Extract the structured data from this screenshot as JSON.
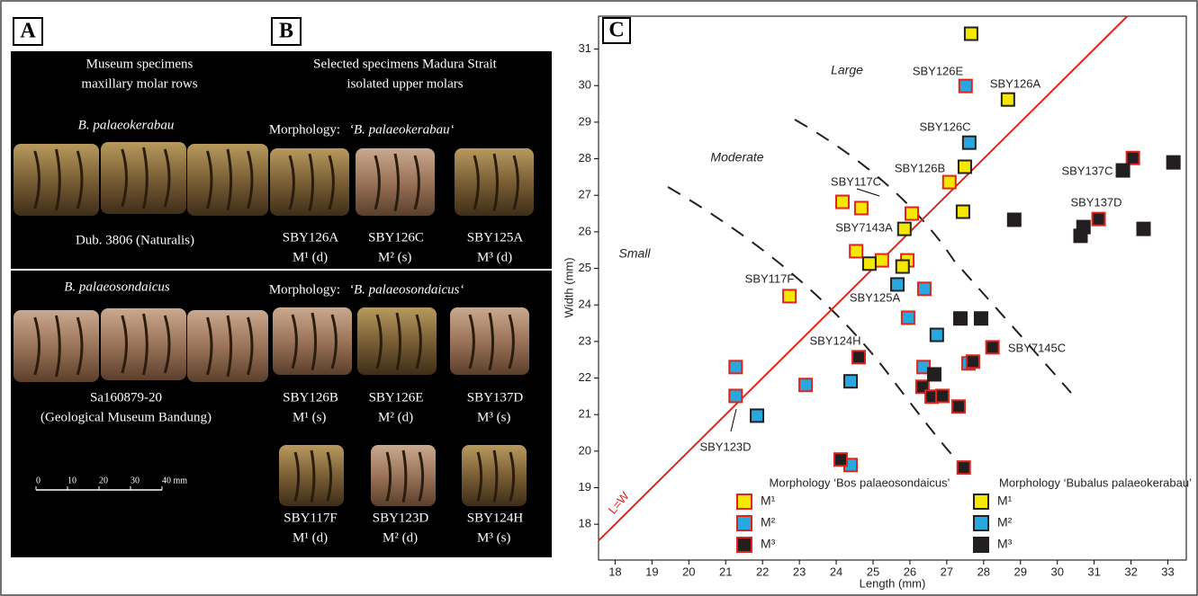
{
  "panels": {
    "a": {
      "label": "A",
      "heading": [
        "Museum specimens",
        "maxillary molar rows"
      ],
      "top_taxon": "B. palaeokerabau",
      "top_caption": "Dub. 3806 (Naturalis)",
      "bottom_taxon": "B. palaeosondaicus",
      "bottom_caption": [
        "Sa160879-20",
        "(Geological Museum Bandung)"
      ],
      "scale_ticks": [
        "0",
        "10",
        "20",
        "30",
        "40 mm"
      ]
    },
    "b": {
      "label": "B",
      "heading": [
        "Selected specimens Madura Strait",
        "isolated upper molars"
      ],
      "groups": [
        {
          "morphology_label": "Morphology:",
          "morphology": "‘B. palaeokerabau‘",
          "specimens": [
            {
              "id": "SBY126A",
              "tooth": "M¹ (d)"
            },
            {
              "id": "SBY126C",
              "tooth": "M² (s)"
            },
            {
              "id": "SBY125A",
              "tooth": "M³ (d)"
            }
          ]
        },
        {
          "morphology_label": "Morphology:",
          "morphology": "‘B. palaeosondaicus‘",
          "specimens": [
            {
              "id": "SBY126B",
              "tooth": "M¹ (s)"
            },
            {
              "id": "SBY126E",
              "tooth": "M² (d)"
            },
            {
              "id": "SBY137D",
              "tooth": "M³ (s)"
            },
            {
              "id": "SBY117F",
              "tooth": "M¹ (d)"
            },
            {
              "id": "SBY123D",
              "tooth": "M² (d)"
            },
            {
              "id": "SBY124H",
              "tooth": "M³ (s)"
            }
          ]
        }
      ]
    }
  },
  "chart_data": {
    "type": "scatter",
    "label": "C",
    "xlabel": "Length (mm)",
    "ylabel": "Width (mm)",
    "xlim": [
      17.55,
      33.5
    ],
    "ylim": [
      17.02,
      31.9
    ],
    "xticks": [
      18,
      19,
      20,
      21,
      22,
      23,
      24,
      25,
      26,
      27,
      28,
      29,
      30,
      31,
      32,
      33
    ],
    "yticks": [
      18,
      19,
      20,
      21,
      22,
      23,
      24,
      25,
      26,
      27,
      28,
      29,
      30,
      31
    ],
    "reference_line": "L=W",
    "legend_titles": [
      "Morphology ‘Bos palaeosondaicus’",
      "Morphology ‘Bubalus palaeokerabau’"
    ],
    "series": [
      {
        "name": "M¹",
        "color": "#f5e800",
        "edgecolor": "#e2231a",
        "x": [
          22.73,
          24.17,
          24.68,
          24.54,
          25.24,
          26.05,
          27.07,
          25.93
        ],
        "values": [
          24.24,
          26.82,
          26.65,
          25.47,
          25.22,
          26.5,
          27.36,
          25.22
        ]
      },
      {
        "name": "M²",
        "color": "#29a8e0",
        "edgecolor": "#e2231a",
        "x": [
          27.51,
          21.27,
          21.27,
          23.17,
          26.39,
          25.95,
          26.37,
          27.59,
          24.39
        ],
        "values": [
          29.99,
          22.3,
          21.51,
          21.81,
          24.44,
          23.65,
          22.3,
          22.4,
          19.62
        ]
      },
      {
        "name": "M³",
        "color": "#231f20",
        "edgecolor": "#e2231a",
        "x": [
          32.05,
          31.12,
          24.61,
          27.71,
          28.24,
          26.34,
          26.59,
          26.88,
          27.32,
          24.12,
          27.46
        ],
        "values": [
          28.02,
          26.35,
          22.57,
          22.45,
          22.84,
          21.76,
          21.49,
          21.51,
          21.22,
          19.77,
          19.55
        ]
      },
      {
        "name": "M¹",
        "color": "#f5e800",
        "edgecolor": "#231f20",
        "x": [
          27.66,
          28.66,
          27.49,
          27.44,
          25.85,
          24.9,
          25.8
        ],
        "values": [
          31.42,
          29.62,
          27.78,
          26.55,
          26.08,
          25.13,
          25.05
        ]
      },
      {
        "name": "M²",
        "color": "#29a8e0",
        "edgecolor": "#231f20",
        "x": [
          27.61,
          25.66,
          26.73,
          24.39,
          21.85
        ],
        "values": [
          28.44,
          24.56,
          23.18,
          21.91,
          20.97
        ]
      },
      {
        "name": "M³",
        "color": "#231f20",
        "edgecolor": "#231f20",
        "x": [
          31.78,
          33.15,
          28.83,
          30.71,
          30.63,
          32.34,
          27.37,
          27.93,
          26.66
        ],
        "values": [
          27.68,
          27.9,
          26.33,
          26.13,
          25.89,
          26.08,
          23.63,
          23.63,
          22.1
        ]
      }
    ],
    "annotations": [
      "SBY126E",
      "SBY126A",
      "SBY126C",
      "SBY126B",
      "SBY117C",
      "SBY7143A",
      "SBY117F",
      "SBY125A",
      "SBY124H",
      "SBY7145C",
      "SBY137C",
      "SBY137D",
      "SBY123D",
      "Large",
      "Moderate",
      "Small"
    ]
  }
}
